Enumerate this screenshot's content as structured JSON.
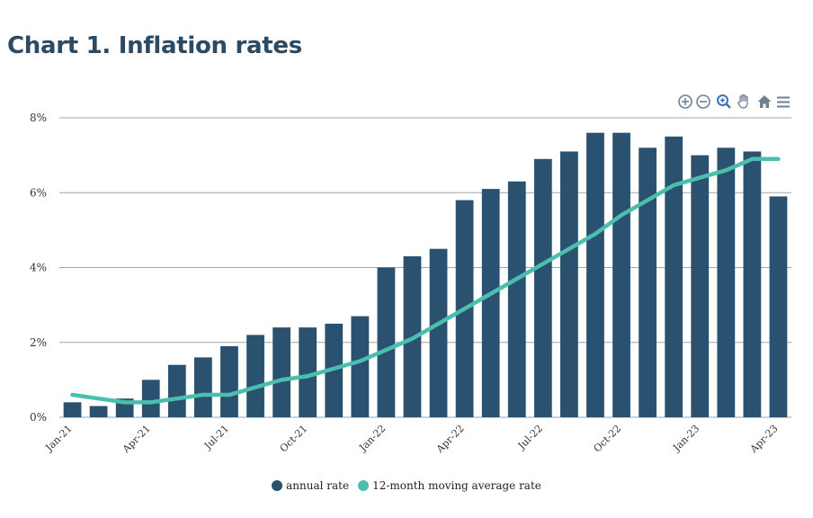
{
  "title": "Chart 1. Inflation rates",
  "toolbar": {
    "icons": [
      "zoom-in-icon",
      "zoom-out-icon",
      "selection-zoom-icon",
      "pan-hand-icon",
      "home-reset-icon",
      "menu-icon"
    ]
  },
  "colors": {
    "bar": "#2b5170",
    "line": "#4bbfae",
    "grid": "#9aa5b1",
    "title": "#2c4a63"
  },
  "chart_data": {
    "type": "bar",
    "title": "Chart 1. Inflation rates",
    "xlabel": "",
    "ylabel": "",
    "ylim": [
      0,
      8
    ],
    "yticks": [
      "0%",
      "2%",
      "4%",
      "6%",
      "8%"
    ],
    "x_tick_labels": [
      "Jan-21",
      "Apr-21",
      "Jul-21",
      "Oct-21",
      "Jan-22",
      "Apr-22",
      "Jul-22",
      "Oct-22",
      "Jan-23",
      "Apr-23"
    ],
    "categories": [
      "Jan-21",
      "Feb-21",
      "Mar-21",
      "Apr-21",
      "May-21",
      "Jun-21",
      "Jul-21",
      "Aug-21",
      "Sep-21",
      "Oct-21",
      "Nov-21",
      "Dec-21",
      "Jan-22",
      "Feb-22",
      "Mar-22",
      "Apr-22",
      "May-22",
      "Jun-22",
      "Jul-22",
      "Aug-22",
      "Sep-22",
      "Oct-22",
      "Nov-22",
      "Dec-22",
      "Jan-23",
      "Feb-23",
      "Mar-23",
      "Apr-23"
    ],
    "series": [
      {
        "name": "annual rate",
        "type": "bar",
        "values": [
          0.4,
          0.3,
          0.5,
          1.0,
          1.4,
          1.6,
          1.9,
          2.2,
          2.4,
          2.4,
          2.5,
          2.7,
          4.0,
          4.3,
          4.5,
          5.8,
          6.1,
          6.3,
          6.9,
          7.1,
          7.6,
          7.6,
          7.2,
          7.5,
          7.0,
          7.2,
          7.1,
          5.9
        ]
      },
      {
        "name": "12-month moving average rate",
        "type": "line",
        "values": [
          0.6,
          0.5,
          0.4,
          0.4,
          0.5,
          0.6,
          0.6,
          0.8,
          1.0,
          1.1,
          1.3,
          1.5,
          1.8,
          2.1,
          2.5,
          2.9,
          3.3,
          3.7,
          4.1,
          4.5,
          4.9,
          5.4,
          5.8,
          6.2,
          6.4,
          6.6,
          6.9,
          6.9
        ]
      }
    ],
    "grid": true,
    "legend_position": "bottom-center"
  }
}
